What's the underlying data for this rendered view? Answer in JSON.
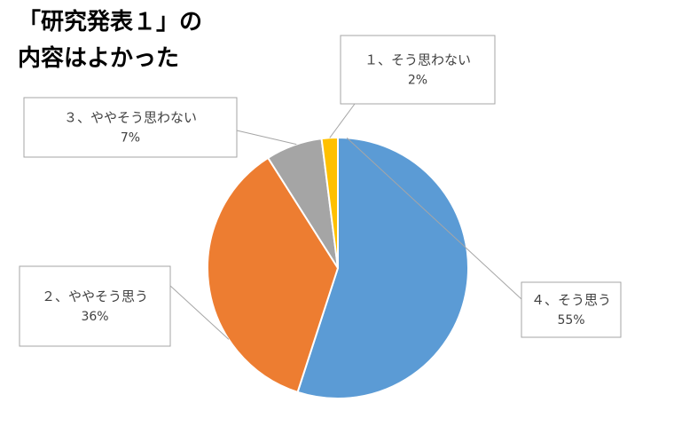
{
  "chart_data": {
    "type": "pie",
    "title": "「研究発表１」の\n内容はよかった",
    "start_angle_deg": 0,
    "direction": "clockwise",
    "legend": "none",
    "slices": [
      {
        "label": "４、そう思う",
        "value": 55,
        "value_label": "55%",
        "color": "#5B9BD5"
      },
      {
        "label": "２、ややそう思う",
        "value": 36,
        "value_label": "36%",
        "color": "#ED7D31"
      },
      {
        "label": "３、ややそう思わない",
        "value": 7,
        "value_label": "7%",
        "color": "#A5A5A5"
      },
      {
        "label": "１、そう思わない",
        "value": 2,
        "value_label": "2%",
        "color": "#FFC000"
      }
    ]
  }
}
